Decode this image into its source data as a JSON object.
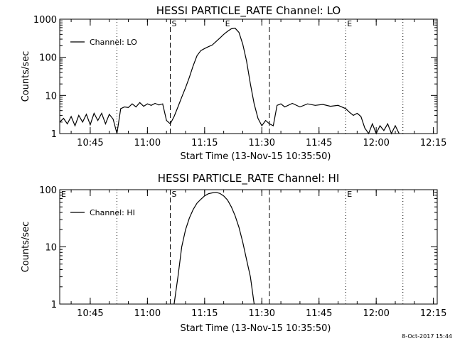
{
  "chart_data": [
    {
      "type": "line",
      "title": "HESSI PARTICLE_RATE Channel: LO",
      "xlabel": "Start Time (13-Nov-15 10:35:50)",
      "ylabel": "Counts/sec",
      "yscale": "log",
      "ylim": [
        1,
        1000
      ],
      "xlim": [
        "10:37",
        "12:16"
      ],
      "yticks": [
        "1",
        "10",
        "100",
        "1000"
      ],
      "xticks": [
        "10:45",
        "11:00",
        "11:15",
        "11:30",
        "11:45",
        "12:00",
        "12:15"
      ],
      "legend": {
        "label": "Channel: LO",
        "placement": "top-left"
      },
      "markers": [
        {
          "label": "E",
          "time": "11:20",
          "style": "none"
        },
        {
          "label": "S",
          "time": "11:06",
          "style": "dashed"
        },
        {
          "label": "",
          "time": "11:32",
          "style": "dashed"
        },
        {
          "label": "",
          "time": "10:52",
          "style": "dotted"
        },
        {
          "label": "E",
          "time": "11:52",
          "style": "dotted"
        },
        {
          "label": "",
          "time": "12:07",
          "style": "dotted"
        }
      ],
      "series": [
        {
          "name": "Channel: LO",
          "points": [
            [
              "10:37",
              2
            ],
            [
              "10:38",
              2.5
            ],
            [
              "10:39",
              1.8
            ],
            [
              "10:40",
              2.8
            ],
            [
              "10:41",
              1.6
            ],
            [
              "10:42",
              3
            ],
            [
              "10:43",
              2
            ],
            [
              "10:44",
              3.2
            ],
            [
              "10:45",
              1.7
            ],
            [
              "10:46",
              3.4
            ],
            [
              "10:47",
              2.2
            ],
            [
              "10:48",
              3.4
            ],
            [
              "10:49",
              1.8
            ],
            [
              "10:50",
              3.2
            ],
            [
              "10:51",
              2.4
            ],
            [
              "10:52",
              1
            ],
            [
              "10:53",
              4.5
            ],
            [
              "10:54",
              5
            ],
            [
              "10:55",
              4.8
            ],
            [
              "10:56",
              6
            ],
            [
              "10:57",
              5
            ],
            [
              "10:58",
              6.5
            ],
            [
              "10:59",
              5.2
            ],
            [
              "11:00",
              6
            ],
            [
              "11:01",
              5.5
            ],
            [
              "11:02",
              6.2
            ],
            [
              "11:03",
              5.6
            ],
            [
              "11:04",
              6
            ],
            [
              "11:05",
              2.2
            ],
            [
              "11:06",
              1.8
            ],
            [
              "11:07",
              2.8
            ],
            [
              "11:08",
              5
            ],
            [
              "11:09",
              9
            ],
            [
              "11:10",
              16
            ],
            [
              "11:11",
              30
            ],
            [
              "11:12",
              60
            ],
            [
              "11:13",
              110
            ],
            [
              "11:14",
              150
            ],
            [
              "11:15",
              170
            ],
            [
              "11:16",
              190
            ],
            [
              "11:17",
              210
            ],
            [
              "11:18",
              260
            ],
            [
              "11:19",
              320
            ],
            [
              "11:20",
              400
            ],
            [
              "11:21",
              480
            ],
            [
              "11:22",
              560
            ],
            [
              "11:23",
              580
            ],
            [
              "11:24",
              450
            ],
            [
              "11:25",
              220
            ],
            [
              "11:26",
              80
            ],
            [
              "11:27",
              20
            ],
            [
              "11:28",
              6
            ],
            [
              "11:29",
              2.5
            ],
            [
              "11:30",
              1.6
            ],
            [
              "11:31",
              2.2
            ],
            [
              "11:32",
              1.8
            ],
            [
              "11:33",
              1.6
            ],
            [
              "11:34",
              5.5
            ],
            [
              "11:35",
              6
            ],
            [
              "11:36",
              5
            ],
            [
              "11:38",
              6.2
            ],
            [
              "11:40",
              5
            ],
            [
              "11:42",
              6
            ],
            [
              "11:44",
              5.5
            ],
            [
              "11:46",
              5.8
            ],
            [
              "11:48",
              5.2
            ],
            [
              "11:50",
              5.5
            ],
            [
              "11:52",
              4.5
            ],
            [
              "11:53",
              3.6
            ],
            [
              "11:54",
              3
            ],
            [
              "11:55",
              3.4
            ],
            [
              "11:56",
              2.8
            ],
            [
              "11:57",
              1.4
            ],
            [
              "11:58",
              1
            ],
            [
              "11:59",
              1.8
            ],
            [
              "12:00",
              1
            ],
            [
              "12:01",
              1.6
            ],
            [
              "12:02",
              1.2
            ],
            [
              "12:03",
              1.8
            ],
            [
              "12:04",
              1
            ],
            [
              "12:05",
              1.6
            ],
            [
              "12:06",
              1
            ]
          ]
        }
      ]
    },
    {
      "type": "line",
      "title": "HESSI PARTICLE_RATE Channel: HI",
      "xlabel": "Start Time (13-Nov-15 10:35:50)",
      "ylabel": "Counts/sec",
      "yscale": "log",
      "ylim": [
        1,
        100
      ],
      "xlim": [
        "10:37",
        "12:16"
      ],
      "yticks": [
        "1",
        "10",
        "100"
      ],
      "xticks": [
        "10:45",
        "11:00",
        "11:15",
        "11:30",
        "11:45",
        "12:00",
        "12:15"
      ],
      "legend": {
        "label": "Channel: HI",
        "placement": "top-left"
      },
      "markers": [
        {
          "label": "E",
          "time": "10:37",
          "style": "none"
        },
        {
          "label": "S",
          "time": "11:06",
          "style": "dashed"
        },
        {
          "label": "",
          "time": "11:32",
          "style": "dashed"
        },
        {
          "label": "",
          "time": "10:52",
          "style": "dotted"
        },
        {
          "label": "E",
          "time": "11:52",
          "style": "dotted"
        },
        {
          "label": "",
          "time": "12:07",
          "style": "dotted"
        }
      ],
      "series": [
        {
          "name": "Channel: HI",
          "points": [
            [
              "11:07",
              1
            ],
            [
              "11:08",
              3
            ],
            [
              "11:09",
              10
            ],
            [
              "11:10",
              20
            ],
            [
              "11:11",
              32
            ],
            [
              "11:12",
              45
            ],
            [
              "11:13",
              58
            ],
            [
              "11:14",
              68
            ],
            [
              "11:15",
              78
            ],
            [
              "11:16",
              85
            ],
            [
              "11:17",
              88
            ],
            [
              "11:18",
              90
            ],
            [
              "11:19",
              86
            ],
            [
              "11:20",
              78
            ],
            [
              "11:21",
              66
            ],
            [
              "11:22",
              50
            ],
            [
              "11:23",
              35
            ],
            [
              "11:24",
              22
            ],
            [
              "11:25",
              12
            ],
            [
              "11:26",
              6
            ],
            [
              "11:27",
              3
            ],
            [
              "11:28",
              1
            ]
          ]
        }
      ]
    }
  ],
  "timestamp": "8-Oct-2017 15:44"
}
